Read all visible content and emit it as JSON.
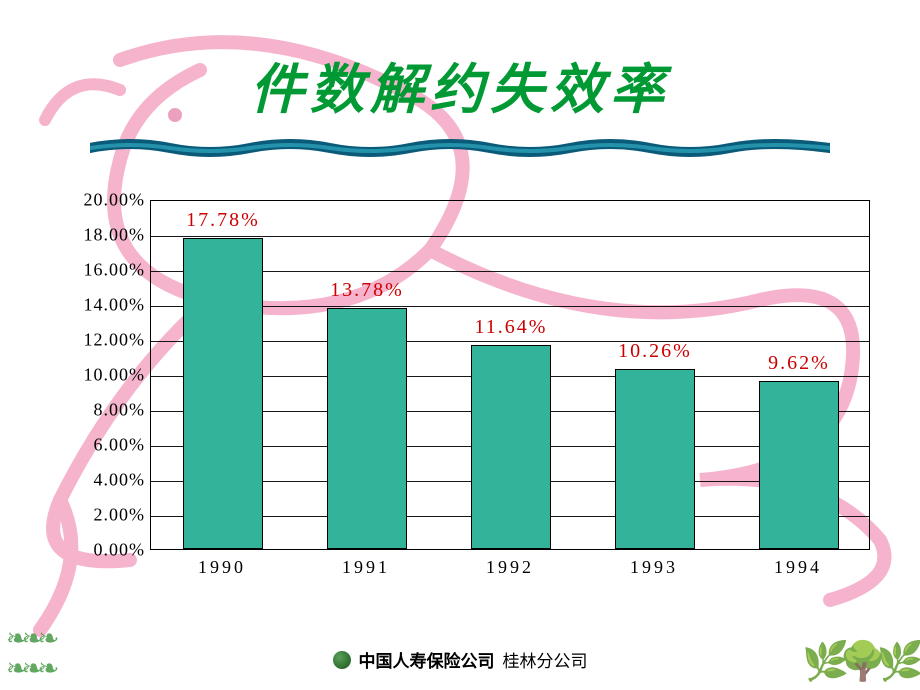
{
  "title": {
    "text": "件数解约失效率",
    "color": "#009933",
    "fontsize": 54
  },
  "underline": {
    "colors": [
      "#0a5a7a",
      "#1a8aa0",
      "#0a4a6a"
    ]
  },
  "chart": {
    "type": "bar",
    "categories": [
      "1990",
      "1991",
      "1992",
      "1993",
      "1994"
    ],
    "values": [
      17.78,
      13.78,
      11.64,
      10.26,
      9.62
    ],
    "value_labels": [
      "17.78%",
      "13.78%",
      "11.64%",
      "10.26%",
      "9.62%"
    ],
    "bar_color": "#33b399",
    "bar_border_color": "#000000",
    "label_color": "#cc0000",
    "label_fontsize": 20,
    "axis_label_color": "#000000",
    "axis_fontsize": 18,
    "ylim": [
      0,
      20
    ],
    "ytick_step": 2,
    "ytick_labels": [
      "0.00%",
      "2.00%",
      "4.00%",
      "6.00%",
      "8.00%",
      "10.00%",
      "12.00%",
      "14.00%",
      "16.00%",
      "18.00%",
      "20.00%"
    ],
    "grid_color": "#000000",
    "background_color": "#ffffff",
    "bar_width_ratio": 0.55
  },
  "footer": {
    "company": "中国人寿保险公司",
    "branch": "桂林分公司",
    "color": "#000000",
    "fontsize": 17
  },
  "decoration": {
    "bird_color": "#f4a6c4",
    "bird_stroke": "#e890b5"
  }
}
